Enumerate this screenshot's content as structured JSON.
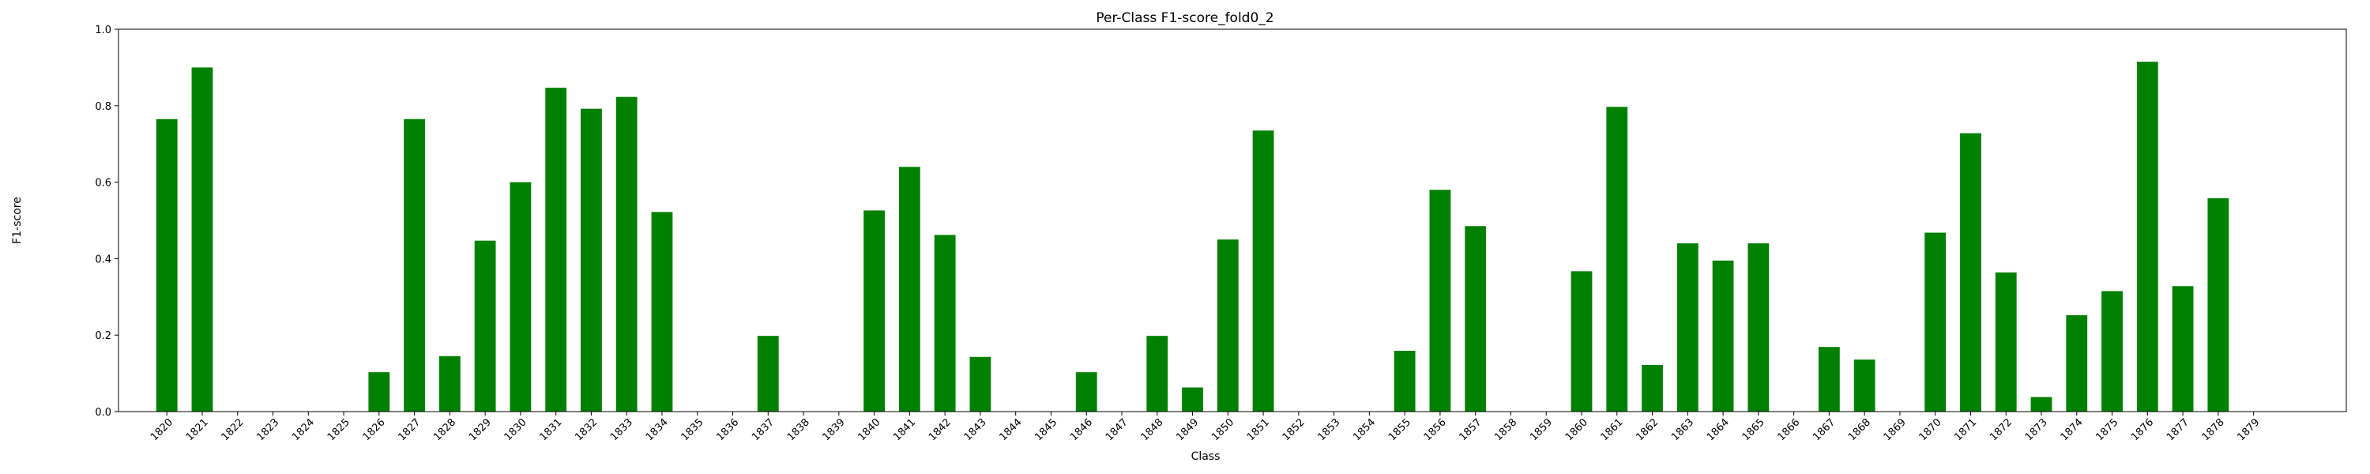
{
  "chart_data": {
    "type": "bar",
    "title": "Per-Class F1-score_fold0_2",
    "xlabel": "Class",
    "ylabel": "F1-score",
    "ylim": [
      0,
      1.0
    ],
    "yticks": [
      "0.0",
      "0.2",
      "0.4",
      "0.6",
      "0.8",
      "1.0"
    ],
    "grid": false,
    "bar_color": "#008000",
    "categories": [
      "1820",
      "1821",
      "1822",
      "1823",
      "1824",
      "1825",
      "1826",
      "1827",
      "1828",
      "1829",
      "1830",
      "1831",
      "1832",
      "1833",
      "1834",
      "1835",
      "1836",
      "1837",
      "1838",
      "1839",
      "1840",
      "1841",
      "1842",
      "1843",
      "1844",
      "1845",
      "1846",
      "1847",
      "1848",
      "1849",
      "1850",
      "1851",
      "1852",
      "1853",
      "1854",
      "1855",
      "1856",
      "1857",
      "1858",
      "1859",
      "1860",
      "1861",
      "1862",
      "1863",
      "1864",
      "1865",
      "1866",
      "1867",
      "1868",
      "1869",
      "1870",
      "1871",
      "1872",
      "1873",
      "1874",
      "1875",
      "1876",
      "1877",
      "1878",
      "1879"
    ],
    "values": [
      0.765,
      0.9,
      0,
      0,
      0,
      0,
      0.103,
      0.765,
      0.145,
      0.447,
      0.6,
      0.847,
      0.792,
      0.823,
      0.522,
      0,
      0,
      0.198,
      0,
      0,
      0.526,
      0.64,
      0.462,
      0.143,
      0,
      0,
      0.103,
      0,
      0.198,
      0.063,
      0.45,
      0.735,
      0,
      0,
      0,
      0.159,
      0.58,
      0.485,
      0,
      0,
      0.367,
      0.797,
      0.122,
      0.44,
      0.395,
      0.44,
      0,
      0.169,
      0.136,
      0,
      0.468,
      0.728,
      0.364,
      0.038,
      0.252,
      0.315,
      0.915,
      0.328,
      0.558,
      0
    ]
  }
}
